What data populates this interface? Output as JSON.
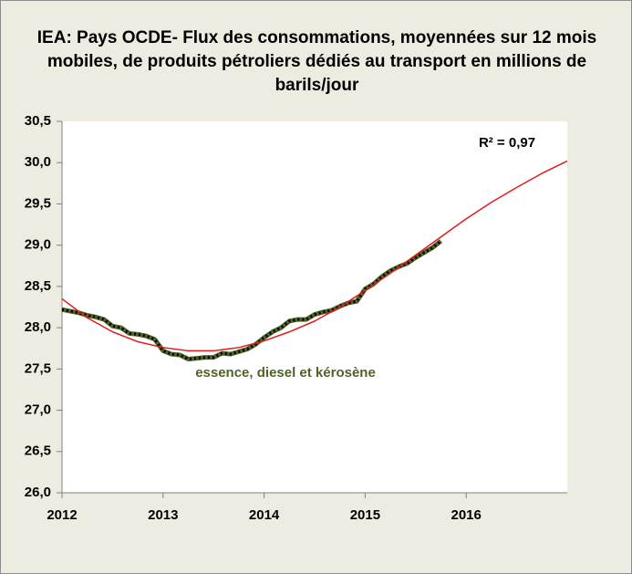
{
  "chart_data": {
    "type": "line",
    "title": "IEA: Pays OCDE- Flux des consommations, moyennées sur 12 mois mobiles, de produits pétroliers dédiés au transport en millions de barils/jour",
    "annotation": "R² = 0,97",
    "xlim": [
      2012,
      2017
    ],
    "xticks": [
      2012,
      2013,
      2014,
      2015,
      2016
    ],
    "ylim": [
      26.0,
      30.5
    ],
    "yticks": [
      {
        "value": 26.0,
        "label": "26,0"
      },
      {
        "value": 26.5,
        "label": "26,5"
      },
      {
        "value": 27.0,
        "label": "27,0"
      },
      {
        "value": 27.5,
        "label": "27,5"
      },
      {
        "value": 28.0,
        "label": "28,0"
      },
      {
        "value": 28.5,
        "label": "28,5"
      },
      {
        "value": 29.0,
        "label": "29,0"
      },
      {
        "value": 29.5,
        "label": "29,5"
      },
      {
        "value": 30.0,
        "label": "30,0"
      },
      {
        "value": 30.5,
        "label": "30,5"
      }
    ],
    "grid": false,
    "series": [
      {
        "name": "essence, diesel et kérosène",
        "color": "#4f6228",
        "x": [
          2012.0,
          2012.083,
          2012.167,
          2012.25,
          2012.333,
          2012.417,
          2012.5,
          2012.583,
          2012.667,
          2012.75,
          2012.833,
          2012.917,
          2013.0,
          2013.083,
          2013.167,
          2013.25,
          2013.333,
          2013.417,
          2013.5,
          2013.583,
          2013.667,
          2013.75,
          2013.833,
          2013.917,
          2014.0,
          2014.083,
          2014.167,
          2014.25,
          2014.333,
          2014.417,
          2014.5,
          2014.583,
          2014.667,
          2014.75,
          2014.833,
          2014.917,
          2015.0,
          2015.083,
          2015.167,
          2015.25,
          2015.333,
          2015.417,
          2015.5,
          2015.583,
          2015.667,
          2015.75
        ],
        "values": [
          28.22,
          28.2,
          28.18,
          28.15,
          28.13,
          28.1,
          28.02,
          28.0,
          27.93,
          27.92,
          27.9,
          27.86,
          27.72,
          27.68,
          27.67,
          27.62,
          27.63,
          27.64,
          27.64,
          27.69,
          27.68,
          27.71,
          27.74,
          27.8,
          27.88,
          27.95,
          28.0,
          28.08,
          28.1,
          28.1,
          28.16,
          28.19,
          28.21,
          28.26,
          28.3,
          28.32,
          28.47,
          28.53,
          28.62,
          28.69,
          28.74,
          28.78,
          28.85,
          28.91,
          28.97,
          29.05
        ]
      },
      {
        "color": "#e31a1c",
        "x": [
          2012.0,
          2012.25,
          2012.5,
          2012.75,
          2013.0,
          2013.25,
          2013.5,
          2013.75,
          2014.0,
          2014.25,
          2014.5,
          2014.75,
          2015.0,
          2015.25,
          2015.5,
          2015.75,
          2016.0,
          2016.25,
          2016.5,
          2016.75,
          2017.0
        ],
        "values": [
          28.35,
          28.12,
          27.95,
          27.83,
          27.76,
          27.72,
          27.72,
          27.76,
          27.84,
          27.95,
          28.08,
          28.25,
          28.45,
          28.66,
          28.88,
          29.1,
          29.32,
          29.52,
          29.7,
          29.87,
          30.02
        ]
      }
    ]
  }
}
